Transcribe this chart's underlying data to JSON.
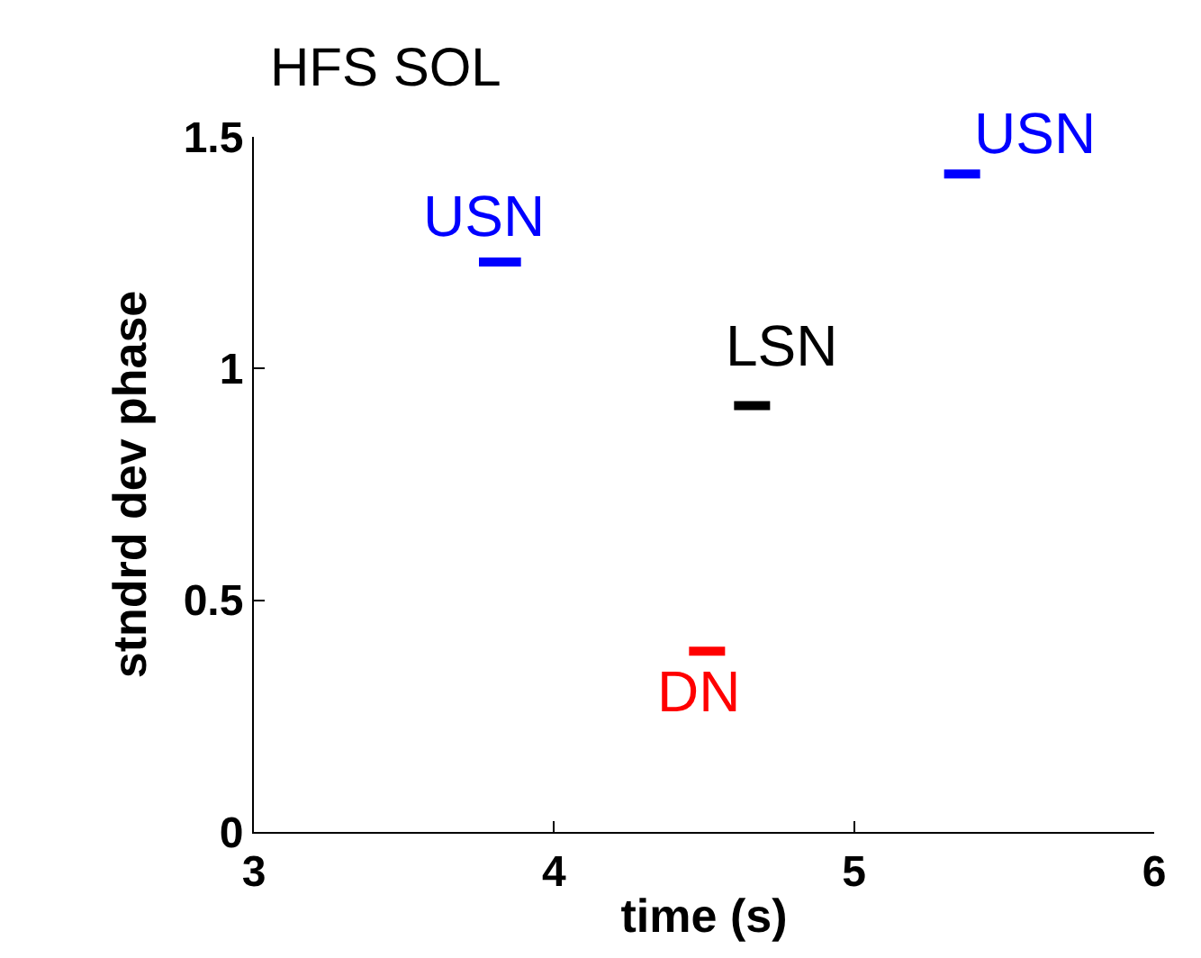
{
  "chart_data": {
    "type": "line",
    "title": "HFS SOL",
    "xlabel": "time (s)",
    "ylabel": "stndrd dev phase",
    "xlim": [
      3,
      6
    ],
    "ylim": [
      0,
      1.5
    ],
    "xticks": [
      3,
      4,
      5,
      6
    ],
    "yticks": [
      0,
      0.5,
      1,
      1.5
    ],
    "grid": false,
    "legend": false,
    "marker": "none",
    "line_style": "solid",
    "series": [
      {
        "name": "USN",
        "color": "#0000ff",
        "x": [
          3.75,
          3.89
        ],
        "values": [
          1.23,
          1.23
        ]
      },
      {
        "name": "LSN",
        "color": "#000000",
        "x": [
          4.6,
          4.72
        ],
        "values": [
          0.92,
          0.92
        ]
      },
      {
        "name": "DN",
        "color": "#ff0000",
        "x": [
          4.45,
          4.57
        ],
        "values": [
          0.39,
          0.39
        ]
      },
      {
        "name": "USN",
        "color": "#0000ff",
        "x": [
          5.3,
          5.42
        ],
        "values": [
          1.42,
          1.42
        ]
      }
    ]
  }
}
